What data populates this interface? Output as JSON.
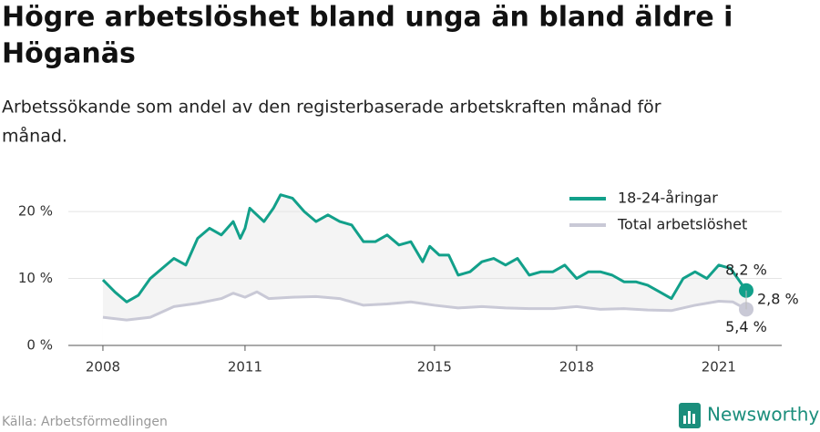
{
  "chart_data": {
    "type": "line",
    "title_lines": [
      "Högre arbetslöshet bland unga än bland äldre i",
      "Höganäs"
    ],
    "subtitle_lines": [
      "Arbetssökande som andel av den registerbaserade arbetskraften månad för",
      "månad."
    ],
    "source": "Källa: Arbetsförmedlingen",
    "brand": "Newsworthy",
    "series": [
      {
        "name": "18-24-åringar",
        "color": "#12a08a",
        "x": [
          2008.0,
          2008.25,
          2008.5,
          2008.75,
          2009.0,
          2009.25,
          2009.5,
          2009.75,
          2010.0,
          2010.25,
          2010.5,
          2010.75,
          2010.9,
          2011.0,
          2011.1,
          2011.4,
          2011.6,
          2011.75,
          2012.0,
          2012.25,
          2012.5,
          2012.75,
          2013.0,
          2013.25,
          2013.5,
          2013.75,
          2014.0,
          2014.25,
          2014.5,
          2014.75,
          2014.9,
          2015.1,
          2015.3,
          2015.5,
          2015.75,
          2016.0,
          2016.25,
          2016.5,
          2016.75,
          2017.0,
          2017.25,
          2017.5,
          2017.75,
          2018.0,
          2018.25,
          2018.5,
          2018.75,
          2019.0,
          2019.25,
          2019.5,
          2019.75,
          2020.0,
          2020.25,
          2020.5,
          2020.75,
          2021.0,
          2021.25,
          2021.4,
          2021.58
        ],
        "values": [
          9.8,
          8.0,
          6.5,
          7.5,
          10.0,
          11.5,
          13.0,
          12.0,
          16.0,
          17.5,
          16.5,
          18.5,
          16.0,
          17.5,
          20.5,
          18.5,
          20.5,
          22.5,
          22.0,
          20.0,
          18.5,
          19.5,
          18.5,
          18.0,
          15.5,
          15.5,
          16.5,
          15.0,
          15.5,
          12.5,
          14.8,
          13.5,
          13.5,
          10.5,
          11.0,
          12.5,
          13.0,
          12.0,
          13.0,
          10.5,
          11.0,
          11.0,
          12.0,
          10.0,
          11.0,
          11.0,
          10.5,
          9.5,
          9.5,
          9.0,
          8.0,
          7.0,
          10.0,
          11.0,
          10.0,
          12.0,
          11.5,
          10.0,
          8.2
        ]
      },
      {
        "name": "Total arbetslöshet",
        "color": "#c9c9d6",
        "x": [
          2008.0,
          2008.5,
          2009.0,
          2009.5,
          2010.0,
          2010.5,
          2010.75,
          2011.0,
          2011.25,
          2011.5,
          2012.0,
          2012.5,
          2013.0,
          2013.5,
          2014.0,
          2014.5,
          2015.0,
          2015.5,
          2016.0,
          2016.5,
          2017.0,
          2017.5,
          2018.0,
          2018.5,
          2019.0,
          2019.5,
          2020.0,
          2020.5,
          2021.0,
          2021.3,
          2021.58
        ],
        "values": [
          4.2,
          3.8,
          4.2,
          5.8,
          6.3,
          7.0,
          7.8,
          7.2,
          8.0,
          7.0,
          7.2,
          7.3,
          7.0,
          6.0,
          6.2,
          6.5,
          6.0,
          5.6,
          5.8,
          5.6,
          5.5,
          5.5,
          5.8,
          5.4,
          5.5,
          5.3,
          5.2,
          6.0,
          6.6,
          6.5,
          5.4
        ]
      }
    ],
    "annotations": [
      {
        "label": "8,2 %"
      },
      {
        "label": "5,4 %"
      },
      {
        "label": "2,8 %"
      }
    ],
    "xlim": [
      2007.27,
      2022.33
    ],
    "xticks": [
      2008,
      2011,
      2015,
      2018,
      2021
    ],
    "ylim": [
      0,
      22.6
    ],
    "yticks": [
      {
        "value": 0,
        "label": "0 %"
      },
      {
        "value": 10,
        "label": "10 %"
      },
      {
        "value": 20,
        "label": "20 %"
      }
    ],
    "grid": true,
    "legend": "top-right"
  }
}
